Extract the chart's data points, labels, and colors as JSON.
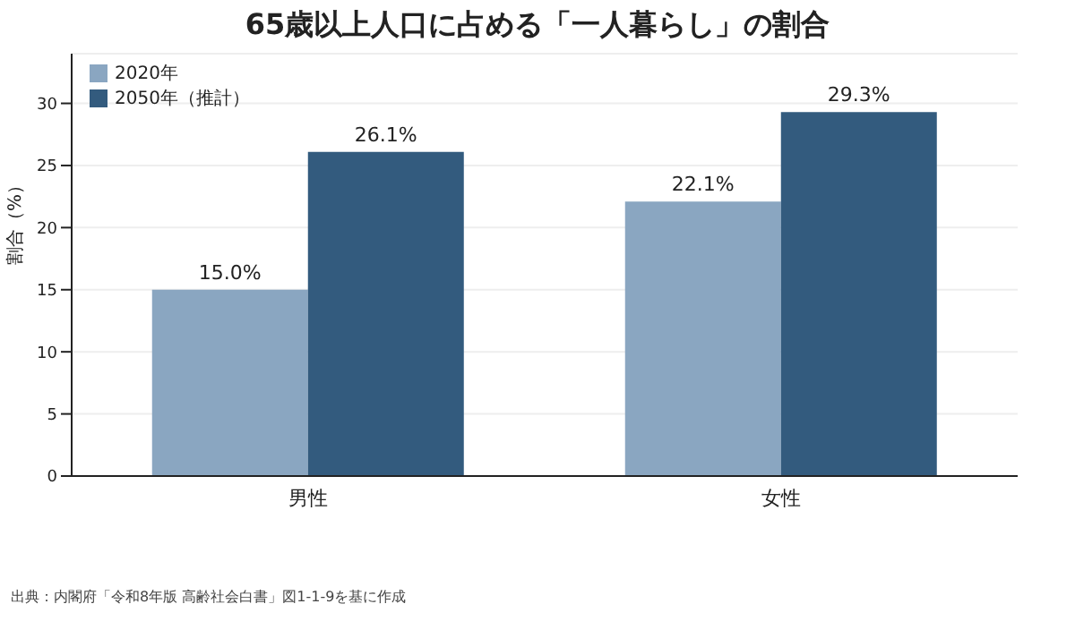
{
  "chart_data": {
    "type": "bar",
    "title": "65歳以上人口に占める「一人暮らし」の割合",
    "ylabel": "割合（%）",
    "categories": [
      "男性",
      "女性"
    ],
    "series": [
      {
        "name": "2020年",
        "color": "#8aa6c1",
        "values": [
          15.0,
          22.1
        ],
        "value_labels": [
          "15.0%",
          "22.1%"
        ]
      },
      {
        "name": "2050年（推計）",
        "color": "#335b7e",
        "values": [
          26.1,
          29.3
        ],
        "value_labels": [
          "26.1%",
          "29.3%"
        ]
      }
    ],
    "ylim": [
      0,
      34
    ],
    "yticks": [
      0,
      5,
      10,
      15,
      20,
      25,
      30
    ],
    "grid": "y",
    "legend": "top left",
    "annotations": [
      "出典：内閣府「令和8年版 高齢社会白書」図1-1-9を基に作成"
    ]
  }
}
